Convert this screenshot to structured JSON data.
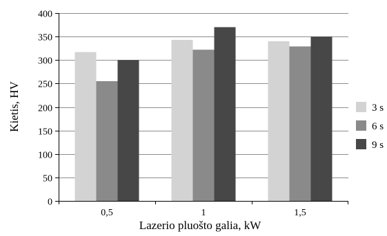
{
  "chart_data": {
    "type": "bar",
    "title": "",
    "xlabel": "Lazerio pluošto galia, kW",
    "ylabel": "Kietis, HV",
    "categories": [
      "0,5",
      "1",
      "1,5"
    ],
    "ylim": [
      0,
      400
    ],
    "yticks": [
      0,
      50,
      100,
      150,
      200,
      250,
      300,
      350,
      400
    ],
    "grid": true,
    "legend_position": "right",
    "series": [
      {
        "name": "3 s",
        "values": [
          317,
          343,
          340
        ],
        "color": "#d3d3d3"
      },
      {
        "name": "6 s",
        "values": [
          255,
          322,
          329
        ],
        "color": "#8a8a8a"
      },
      {
        "name": "9 s",
        "values": [
          300,
          370,
          350
        ],
        "color": "#474747"
      }
    ]
  }
}
